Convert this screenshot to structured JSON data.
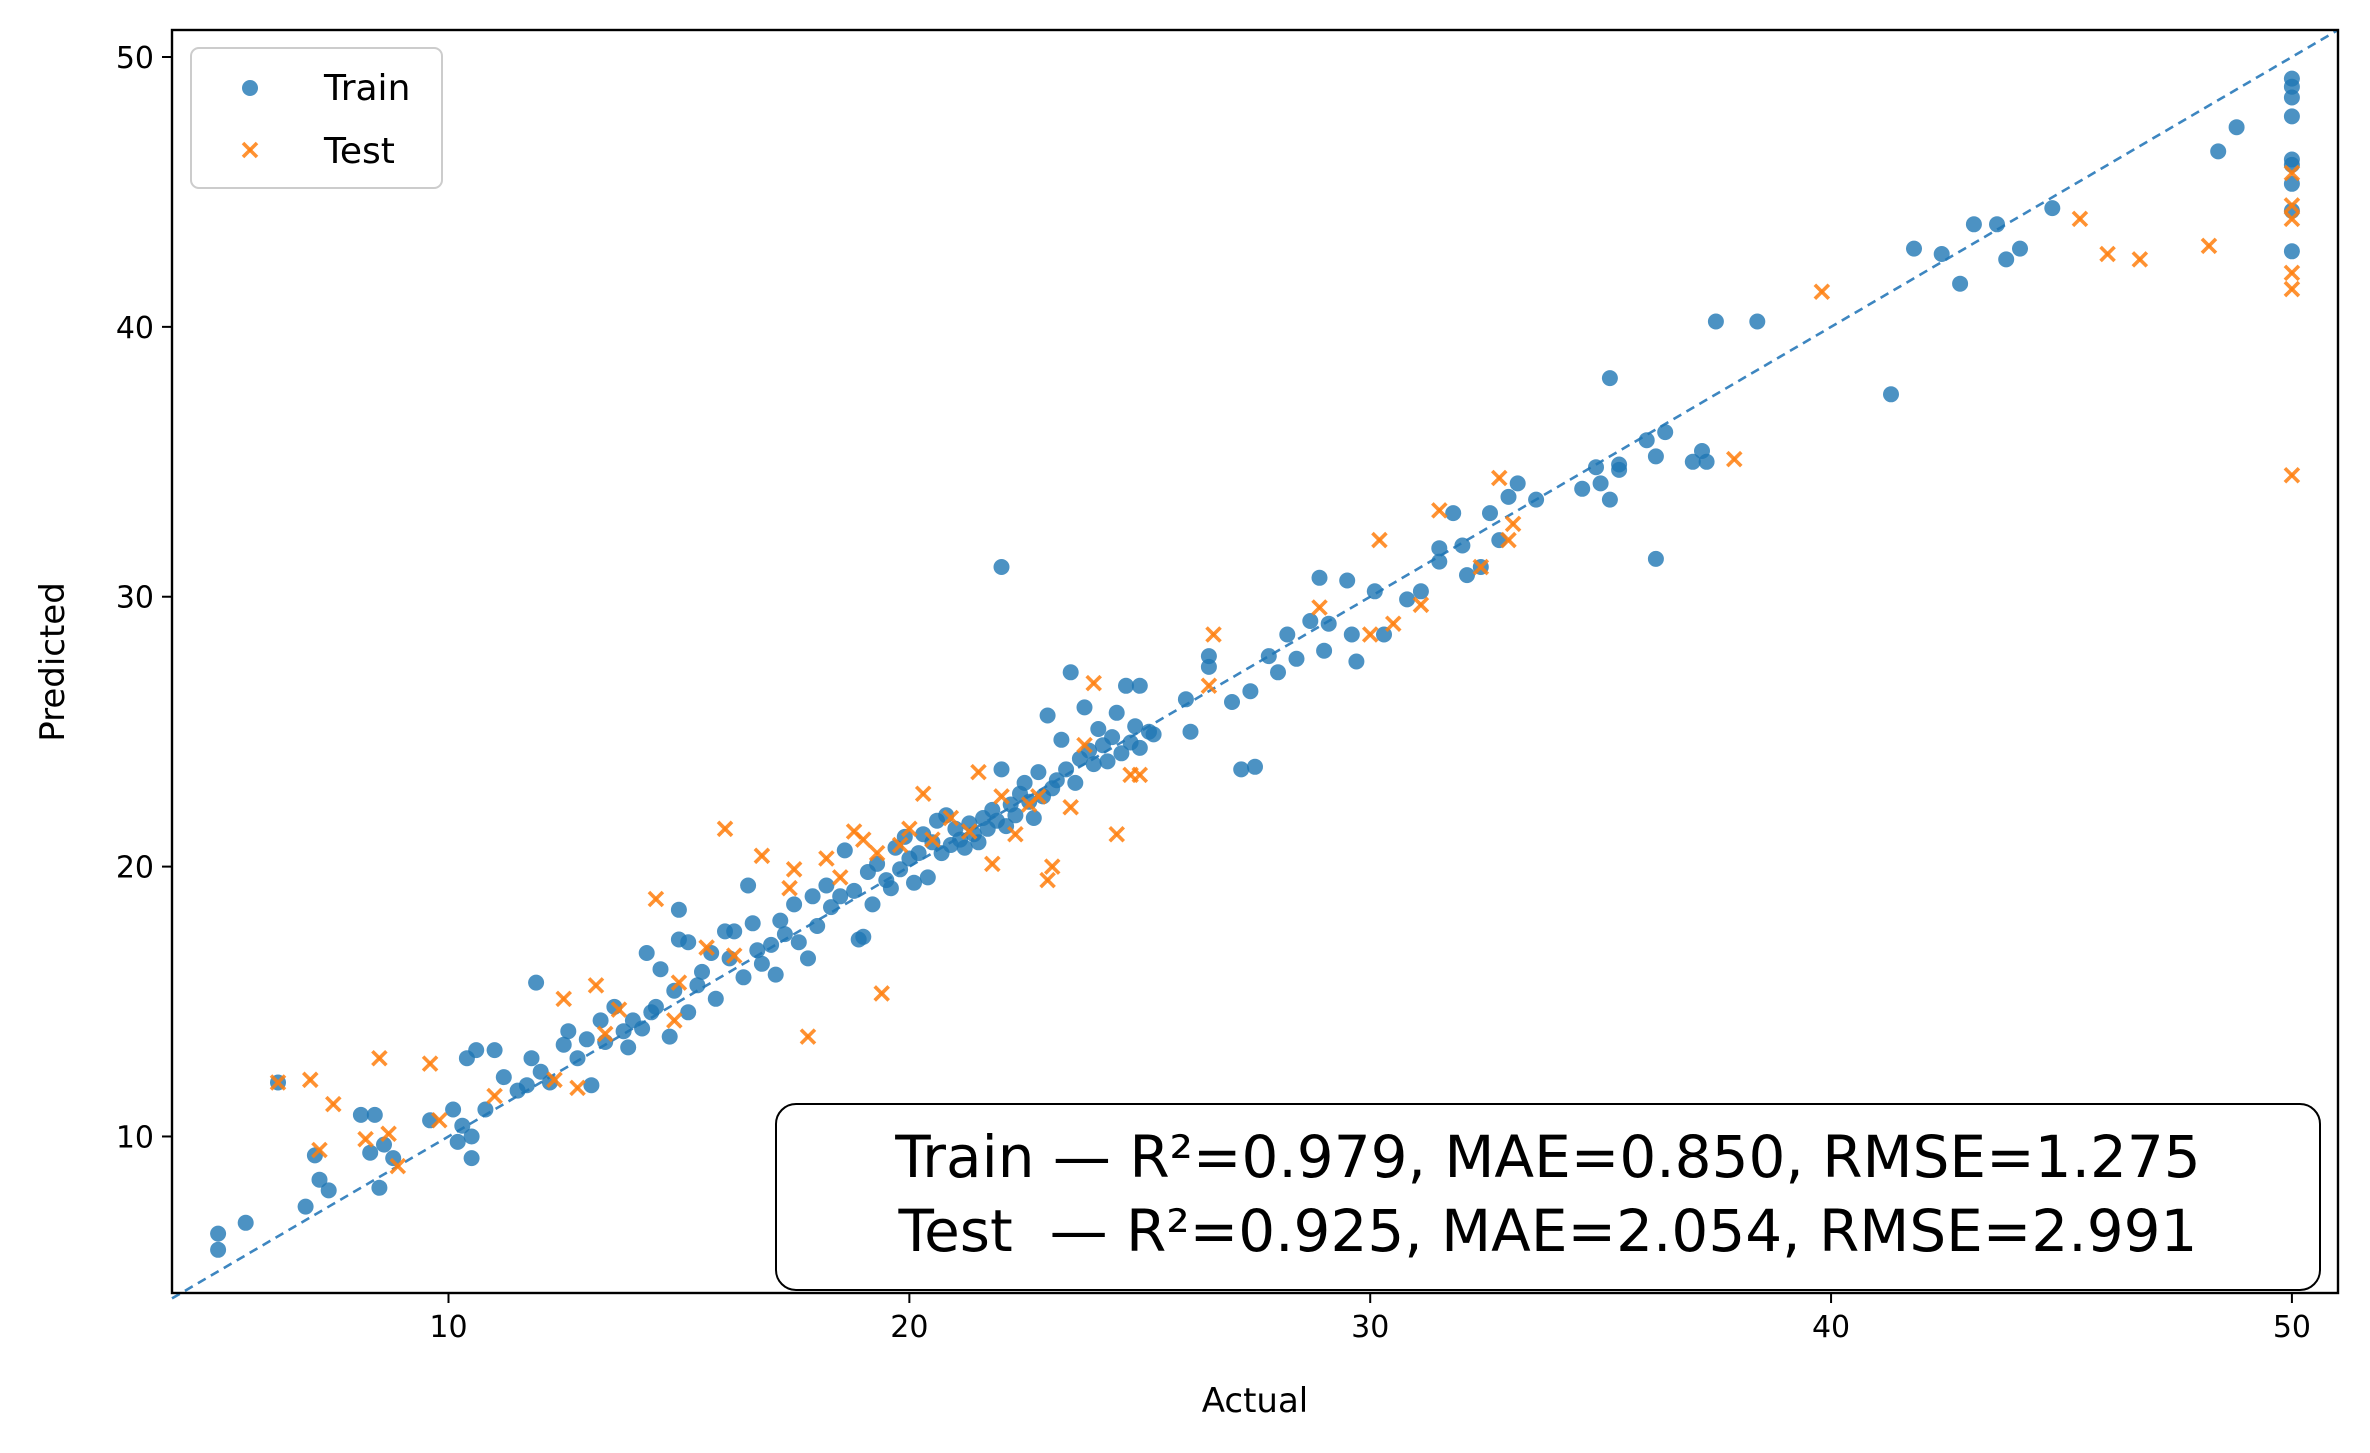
{
  "chart_data": {
    "type": "scatter",
    "xlabel": "Actual",
    "ylabel": "Predicted",
    "xlim": [
      4,
      51
    ],
    "ylim": [
      4.2,
      51
    ],
    "xticks": [
      10,
      20,
      30,
      40,
      50
    ],
    "yticks": [
      10,
      20,
      30,
      40,
      50
    ],
    "legend_position": "top-left",
    "reference_line": {
      "style": "dashed",
      "from": [
        4,
        4
      ],
      "to": [
        51,
        51
      ],
      "color": "#3d86c0"
    },
    "annotation": {
      "line1": "Train — R²=0.979, MAE=0.850, RMSE=1.275",
      "line2": "Test  — R²=0.925, MAE=2.054, RMSE=2.991",
      "position": "bottom-right"
    },
    "series": [
      {
        "name": "Train",
        "marker": "circle",
        "color": "#1f77b4",
        "points": [
          [
            5.0,
            6.4
          ],
          [
            5.0,
            5.8
          ],
          [
            5.6,
            6.8
          ],
          [
            6.3,
            12.0
          ],
          [
            6.9,
            7.4
          ],
          [
            7.1,
            9.3
          ],
          [
            7.2,
            8.4
          ],
          [
            7.4,
            8.0
          ],
          [
            8.1,
            10.8
          ],
          [
            8.3,
            9.4
          ],
          [
            8.4,
            10.8
          ],
          [
            8.5,
            8.1
          ],
          [
            8.6,
            9.7
          ],
          [
            8.8,
            9.2
          ],
          [
            9.6,
            10.6
          ],
          [
            10.1,
            11.0
          ],
          [
            10.2,
            9.8
          ],
          [
            10.3,
            10.4
          ],
          [
            10.4,
            12.9
          ],
          [
            10.5,
            9.2
          ],
          [
            10.5,
            10.0
          ],
          [
            10.6,
            13.2
          ],
          [
            10.8,
            11.0
          ],
          [
            11.0,
            13.2
          ],
          [
            11.2,
            12.2
          ],
          [
            11.5,
            11.7
          ],
          [
            11.7,
            11.9
          ],
          [
            11.8,
            12.9
          ],
          [
            11.9,
            15.7
          ],
          [
            12.0,
            12.4
          ],
          [
            12.2,
            12.0
          ],
          [
            12.5,
            13.4
          ],
          [
            12.6,
            13.9
          ],
          [
            12.8,
            12.9
          ],
          [
            13.0,
            13.6
          ],
          [
            13.1,
            11.9
          ],
          [
            13.3,
            14.3
          ],
          [
            13.4,
            13.5
          ],
          [
            13.6,
            14.8
          ],
          [
            13.8,
            13.9
          ],
          [
            13.9,
            13.3
          ],
          [
            14.0,
            14.3
          ],
          [
            14.2,
            14.0
          ],
          [
            14.3,
            16.8
          ],
          [
            14.4,
            14.6
          ],
          [
            14.5,
            14.8
          ],
          [
            14.6,
            16.2
          ],
          [
            14.8,
            13.7
          ],
          [
            14.9,
            15.4
          ],
          [
            15.0,
            17.3
          ],
          [
            15.0,
            18.4
          ],
          [
            15.2,
            14.6
          ],
          [
            15.2,
            17.2
          ],
          [
            15.4,
            15.6
          ],
          [
            15.5,
            16.1
          ],
          [
            15.7,
            16.8
          ],
          [
            15.8,
            15.1
          ],
          [
            16.0,
            17.6
          ],
          [
            16.1,
            16.6
          ],
          [
            16.2,
            17.6
          ],
          [
            16.4,
            15.9
          ],
          [
            16.5,
            19.3
          ],
          [
            16.6,
            17.9
          ],
          [
            16.7,
            16.9
          ],
          [
            16.8,
            16.4
          ],
          [
            17.0,
            17.1
          ],
          [
            17.1,
            16.0
          ],
          [
            17.2,
            18.0
          ],
          [
            17.3,
            17.5
          ],
          [
            17.5,
            18.6
          ],
          [
            17.6,
            17.2
          ],
          [
            17.8,
            16.6
          ],
          [
            17.9,
            18.9
          ],
          [
            18.0,
            17.8
          ],
          [
            18.2,
            19.3
          ],
          [
            18.3,
            18.5
          ],
          [
            18.5,
            18.9
          ],
          [
            18.6,
            20.6
          ],
          [
            18.8,
            19.1
          ],
          [
            18.9,
            17.3
          ],
          [
            19.0,
            17.4
          ],
          [
            19.1,
            19.8
          ],
          [
            19.2,
            18.6
          ],
          [
            19.3,
            20.1
          ],
          [
            19.5,
            19.5
          ],
          [
            19.6,
            19.2
          ],
          [
            19.7,
            20.7
          ],
          [
            19.8,
            19.9
          ],
          [
            19.9,
            21.1
          ],
          [
            20.0,
            20.3
          ],
          [
            20.1,
            19.4
          ],
          [
            20.2,
            20.5
          ],
          [
            20.3,
            21.2
          ],
          [
            20.4,
            19.6
          ],
          [
            20.5,
            20.9
          ],
          [
            20.6,
            21.7
          ],
          [
            20.7,
            20.5
          ],
          [
            20.8,
            21.9
          ],
          [
            20.9,
            20.8
          ],
          [
            21.0,
            21.4
          ],
          [
            21.1,
            21.0
          ],
          [
            21.2,
            20.7
          ],
          [
            21.3,
            21.6
          ],
          [
            21.4,
            21.2
          ],
          [
            21.5,
            20.9
          ],
          [
            21.6,
            21.8
          ],
          [
            21.7,
            21.4
          ],
          [
            21.8,
            22.1
          ],
          [
            21.9,
            21.7
          ],
          [
            22.0,
            23.6
          ],
          [
            22.0,
            31.1
          ],
          [
            22.1,
            21.5
          ],
          [
            22.2,
            22.3
          ],
          [
            22.3,
            21.9
          ],
          [
            22.4,
            22.7
          ],
          [
            22.5,
            23.1
          ],
          [
            22.6,
            22.4
          ],
          [
            22.7,
            21.8
          ],
          [
            22.8,
            23.5
          ],
          [
            22.9,
            22.6
          ],
          [
            23.0,
            25.6
          ],
          [
            23.1,
            22.9
          ],
          [
            23.2,
            23.2
          ],
          [
            23.3,
            24.7
          ],
          [
            23.4,
            23.6
          ],
          [
            23.5,
            27.2
          ],
          [
            23.6,
            23.1
          ],
          [
            23.7,
            24.0
          ],
          [
            23.8,
            25.9
          ],
          [
            23.9,
            24.3
          ],
          [
            24.0,
            23.8
          ],
          [
            24.1,
            25.1
          ],
          [
            24.2,
            24.5
          ],
          [
            24.3,
            23.9
          ],
          [
            24.4,
            24.8
          ],
          [
            24.5,
            25.7
          ],
          [
            24.6,
            24.2
          ],
          [
            24.7,
            26.7
          ],
          [
            24.8,
            24.6
          ],
          [
            24.9,
            25.2
          ],
          [
            25.0,
            26.7
          ],
          [
            25.0,
            24.4
          ],
          [
            25.2,
            25.0
          ],
          [
            25.3,
            24.9
          ],
          [
            26.0,
            26.2
          ],
          [
            26.1,
            25.0
          ],
          [
            26.5,
            27.4
          ],
          [
            26.5,
            27.8
          ],
          [
            27.0,
            26.1
          ],
          [
            27.2,
            23.6
          ],
          [
            27.4,
            26.5
          ],
          [
            27.5,
            23.7
          ],
          [
            27.8,
            27.8
          ],
          [
            28.0,
            27.2
          ],
          [
            28.2,
            28.6
          ],
          [
            28.4,
            27.7
          ],
          [
            28.7,
            29.1
          ],
          [
            28.9,
            30.7
          ],
          [
            29.0,
            28.0
          ],
          [
            29.1,
            29.0
          ],
          [
            29.5,
            30.6
          ],
          [
            29.6,
            28.6
          ],
          [
            29.7,
            27.6
          ],
          [
            30.1,
            30.2
          ],
          [
            30.3,
            28.6
          ],
          [
            30.8,
            29.9
          ],
          [
            31.1,
            30.2
          ],
          [
            31.5,
            31.3
          ],
          [
            31.5,
            31.8
          ],
          [
            31.8,
            33.1
          ],
          [
            32.0,
            31.9
          ],
          [
            32.1,
            30.8
          ],
          [
            32.4,
            31.1
          ],
          [
            32.6,
            33.1
          ],
          [
            32.8,
            32.1
          ],
          [
            33.0,
            33.7
          ],
          [
            33.2,
            34.2
          ],
          [
            33.6,
            33.6
          ],
          [
            34.6,
            34.0
          ],
          [
            34.9,
            34.8
          ],
          [
            35.0,
            34.2
          ],
          [
            35.2,
            33.6
          ],
          [
            35.2,
            38.1
          ],
          [
            35.4,
            34.9
          ],
          [
            35.4,
            34.7
          ],
          [
            36.0,
            35.8
          ],
          [
            36.2,
            35.2
          ],
          [
            36.2,
            31.4
          ],
          [
            36.4,
            36.1
          ],
          [
            37.0,
            35.0
          ],
          [
            37.2,
            35.4
          ],
          [
            37.3,
            35.0
          ],
          [
            37.5,
            40.2
          ],
          [
            38.4,
            40.2
          ],
          [
            41.3,
            37.5
          ],
          [
            41.8,
            42.9
          ],
          [
            42.4,
            42.7
          ],
          [
            42.8,
            41.6
          ],
          [
            43.1,
            43.8
          ],
          [
            43.6,
            43.8
          ],
          [
            43.8,
            42.5
          ],
          [
            44.1,
            42.9
          ],
          [
            44.8,
            44.4
          ],
          [
            48.4,
            46.5
          ],
          [
            48.8,
            47.4
          ],
          [
            50.0,
            49.2
          ],
          [
            50.0,
            48.9
          ],
          [
            50.0,
            48.5
          ],
          [
            50.0,
            47.8
          ],
          [
            50.0,
            46.2
          ],
          [
            50.0,
            46.0
          ],
          [
            50.0,
            45.3
          ],
          [
            50.0,
            44.3
          ],
          [
            50.0,
            42.8
          ]
        ]
      },
      {
        "name": "Test",
        "marker": "x",
        "color": "#ff7f0e",
        "points": [
          [
            6.3,
            12.0
          ],
          [
            7.0,
            12.1
          ],
          [
            7.2,
            9.5
          ],
          [
            7.5,
            11.2
          ],
          [
            8.2,
            9.9
          ],
          [
            8.5,
            12.9
          ],
          [
            8.7,
            10.1
          ],
          [
            8.9,
            8.9
          ],
          [
            9.6,
            12.7
          ],
          [
            9.8,
            10.6
          ],
          [
            11.0,
            11.5
          ],
          [
            12.3,
            12.1
          ],
          [
            12.5,
            15.1
          ],
          [
            12.8,
            11.8
          ],
          [
            13.2,
            15.6
          ],
          [
            13.4,
            13.8
          ],
          [
            13.7,
            14.7
          ],
          [
            14.5,
            18.8
          ],
          [
            14.9,
            14.3
          ],
          [
            15.0,
            15.7
          ],
          [
            15.6,
            17.0
          ],
          [
            16.0,
            21.4
          ],
          [
            16.2,
            16.7
          ],
          [
            16.8,
            20.4
          ],
          [
            17.4,
            19.2
          ],
          [
            17.5,
            19.9
          ],
          [
            17.8,
            13.7
          ],
          [
            18.2,
            20.3
          ],
          [
            18.5,
            19.6
          ],
          [
            18.8,
            21.3
          ],
          [
            19.0,
            21.0
          ],
          [
            19.3,
            20.5
          ],
          [
            19.4,
            15.3
          ],
          [
            19.8,
            20.8
          ],
          [
            20.0,
            21.4
          ],
          [
            20.3,
            22.7
          ],
          [
            20.5,
            21.0
          ],
          [
            20.9,
            21.8
          ],
          [
            21.3,
            21.3
          ],
          [
            21.5,
            23.5
          ],
          [
            21.8,
            20.1
          ],
          [
            22.0,
            22.6
          ],
          [
            22.3,
            21.2
          ],
          [
            22.6,
            22.3
          ],
          [
            22.8,
            22.6
          ],
          [
            23.0,
            19.5
          ],
          [
            23.1,
            20.0
          ],
          [
            23.5,
            22.2
          ],
          [
            23.8,
            24.5
          ],
          [
            24.0,
            26.8
          ],
          [
            24.5,
            21.2
          ],
          [
            24.8,
            23.4
          ],
          [
            25.0,
            23.4
          ],
          [
            26.6,
            28.6
          ],
          [
            26.5,
            26.7
          ],
          [
            28.9,
            29.6
          ],
          [
            30.0,
            28.6
          ],
          [
            30.2,
            32.1
          ],
          [
            30.5,
            29.0
          ],
          [
            31.1,
            29.7
          ],
          [
            31.5,
            33.2
          ],
          [
            32.4,
            31.1
          ],
          [
            32.8,
            34.4
          ],
          [
            33.0,
            32.1
          ],
          [
            33.1,
            32.7
          ],
          [
            37.9,
            35.1
          ],
          [
            39.8,
            41.3
          ],
          [
            45.4,
            44.0
          ],
          [
            46.0,
            42.7
          ],
          [
            46.7,
            42.5
          ],
          [
            48.2,
            43.0
          ],
          [
            50.0,
            45.7
          ],
          [
            50.0,
            44.5
          ],
          [
            50.0,
            44.0
          ],
          [
            50.0,
            42.0
          ],
          [
            50.0,
            41.4
          ],
          [
            50.0,
            34.5
          ]
        ]
      }
    ]
  }
}
